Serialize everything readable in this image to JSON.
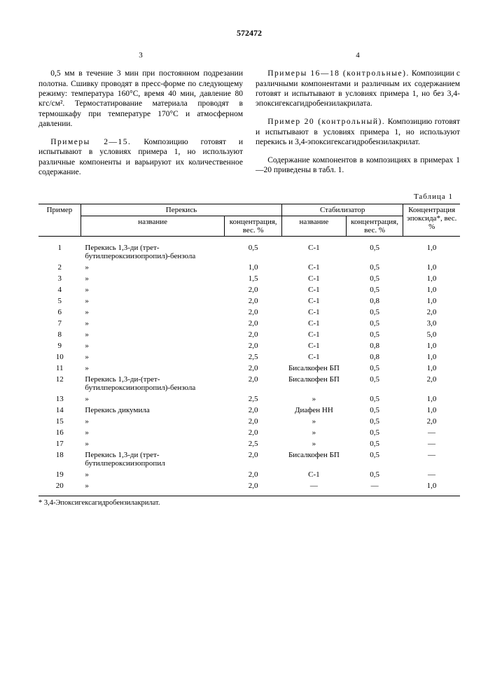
{
  "doc_number": "572472",
  "left_col_num": "3",
  "right_col_num": "4",
  "left_text_p1": "0,5 мм в течение 3 мин при постоянном подрезании полотна. Сшивку проводят в пресс-форме по следующему режиму: температура 160°С, время 40 мин, давление 80 кгс/см². Термостатирование материала проводят в термошкафу при температуре 170°С и атмосферном давлении.",
  "left_text_heading": "Примеры 2—15.",
  "left_text_p2": " Композицию готовят и испытывают в условиях примера 1, но используют различные компоненты и варьируют их количественное содержание.",
  "right_text_heading1": "Примеры 16—18 (контрольные).",
  "right_text_p1": " Композиции с различными компонентами и различным их содержанием готовят и испытывают в условиях примера 1, но без 3,4-эпоксигексагидробензилакрилата.",
  "right_text_heading2": "Пример 20 (контрольный).",
  "right_text_p2": " Композицию готовят и испытывают в условиях примера 1, но используют перекись и 3,4-эпоксигексагидробензилакрилат.",
  "right_text_p3": "Содержание компонентов в композициях в примерах 1—20 приведены в табл. 1.",
  "line_number_5": "5",
  "line_number_10": "10",
  "table_label": "Таблица 1",
  "headers": {
    "example": "Пример",
    "peroxide": "Перекись",
    "stabilizer": "Стабилизатор",
    "epoxide": "Концентрация эпоксида*, вес. %",
    "name": "название",
    "conc": "концентрация, вес. %"
  },
  "rows": [
    {
      "n": "1",
      "pname": "Перекись 1,3-ди (трет-бутилпероксиизопропил)-бензола",
      "pconc": "0,5",
      "sname": "С-1",
      "sconc": "0,5",
      "e": "1,0"
    },
    {
      "n": "2",
      "pname": "»",
      "pconc": "1,0",
      "sname": "С-1",
      "sconc": "0,5",
      "e": "1,0"
    },
    {
      "n": "3",
      "pname": "»",
      "pconc": "1,5",
      "sname": "С-1",
      "sconc": "0,5",
      "e": "1,0"
    },
    {
      "n": "4",
      "pname": "»",
      "pconc": "2,0",
      "sname": "С-1",
      "sconc": "0,5",
      "e": "1,0"
    },
    {
      "n": "5",
      "pname": "»",
      "pconc": "2,0",
      "sname": "С-1",
      "sconc": "0,8",
      "e": "1,0"
    },
    {
      "n": "6",
      "pname": "»",
      "pconc": "2,0",
      "sname": "С-1",
      "sconc": "0,5",
      "e": "2,0"
    },
    {
      "n": "7",
      "pname": "»",
      "pconc": "2,0",
      "sname": "С-1",
      "sconc": "0,5",
      "e": "3,0"
    },
    {
      "n": "8",
      "pname": "»",
      "pconc": "2,0",
      "sname": "С-1",
      "sconc": "0,5",
      "e": "5,0"
    },
    {
      "n": "9",
      "pname": "»",
      "pconc": "2,0",
      "sname": "С-1",
      "sconc": "0,8",
      "e": "1,0"
    },
    {
      "n": "10",
      "pname": "»",
      "pconc": "2,5",
      "sname": "С-1",
      "sconc": "0,8",
      "e": "1,0"
    },
    {
      "n": "11",
      "pname": "»",
      "pconc": "2,0",
      "sname": "Бисалкофен БП",
      "sconc": "0,5",
      "e": "1,0"
    },
    {
      "n": "12",
      "pname": "Перекись 1,3-ди-(трет-бутилпероксиизопропил)-бензола",
      "pconc": "2,0",
      "sname": "Бисалкофен БП",
      "sconc": "0,5",
      "e": "2,0"
    },
    {
      "n": "13",
      "pname": "»",
      "pconc": "2,5",
      "sname": "»",
      "sconc": "0,5",
      "e": "1,0"
    },
    {
      "n": "14",
      "pname": "Перекись дикумила",
      "pconc": "2,0",
      "sname": "Диафен НН",
      "sconc": "0,5",
      "e": "1,0"
    },
    {
      "n": "15",
      "pname": "»",
      "pconc": "2,0",
      "sname": "»",
      "sconc": "0,5",
      "e": "2,0"
    },
    {
      "n": "16",
      "pname": "»",
      "pconc": "2,0",
      "sname": "»",
      "sconc": "0,5",
      "e": "—"
    },
    {
      "n": "17",
      "pname": "»",
      "pconc": "2,5",
      "sname": "»",
      "sconc": "0,5",
      "e": "—"
    },
    {
      "n": "18",
      "pname": "Перекись 1,3-ди (трет-бутилпероксиизопропил",
      "pconc": "2,0",
      "sname": "Бисалкофен БП",
      "sconc": "0,5",
      "e": "—"
    },
    {
      "n": "19",
      "pname": "»",
      "pconc": "2,0",
      "sname": "С-1",
      "sconc": "0,5",
      "e": "—"
    },
    {
      "n": "20",
      "pname": "»",
      "pconc": "2,0",
      "sname": "—",
      "sconc": "—",
      "e": "1,0"
    }
  ],
  "footnote": "* 3,4-Эпоксигексагидробензилакрилат."
}
